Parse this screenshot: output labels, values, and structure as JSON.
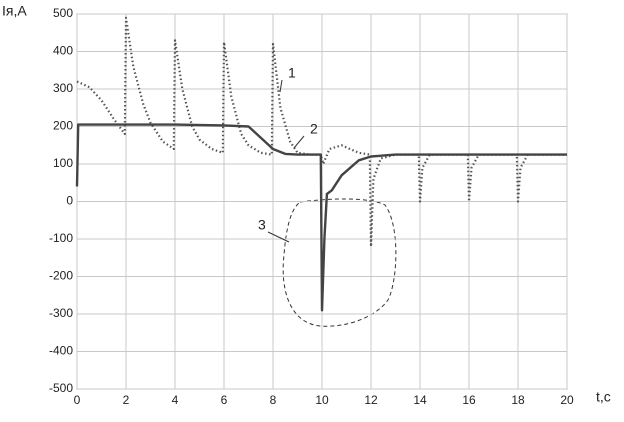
{
  "chart_data": {
    "type": "line",
    "ylabel": "Iя,A",
    "xlabel": "t,c",
    "xlim": [
      0,
      20
    ],
    "xticks": [
      0,
      2,
      4,
      6,
      8,
      10,
      12,
      14,
      16,
      18,
      20
    ],
    "ylim": [
      -500,
      500
    ],
    "yticks": [
      -500,
      -400,
      -300,
      -200,
      -100,
      0,
      100,
      200,
      300,
      400,
      500
    ],
    "grid": true,
    "series": [
      {
        "name": "1",
        "color": "#555555",
        "style": "dotted",
        "x": [
          0,
          0.5,
          1,
          1.5,
          1.95,
          2,
          2.3,
          2.7,
          3,
          3.5,
          3.95,
          4,
          4.3,
          4.7,
          5,
          5.5,
          5.95,
          6,
          6.3,
          6.7,
          7,
          7.5,
          7.95,
          8,
          8.3,
          8.7,
          9,
          9.5,
          9.95,
          10.05,
          10.3,
          10.8,
          11.5,
          11.95,
          12,
          12.1,
          12.4,
          13,
          13.95,
          14,
          14.1,
          14.4,
          15.95,
          16,
          16.1,
          16.4,
          17.95,
          18,
          18.1,
          18.4,
          20
        ],
        "values": [
          320,
          305,
          270,
          220,
          180,
          490,
          360,
          260,
          210,
          160,
          140,
          430,
          300,
          200,
          165,
          140,
          130,
          425,
          280,
          180,
          150,
          130,
          125,
          420,
          250,
          160,
          130,
          125,
          125,
          100,
          140,
          150,
          130,
          125,
          -120,
          60,
          115,
          125,
          125,
          0,
          90,
          125,
          125,
          0,
          90,
          125,
          125,
          0,
          90,
          125,
          125
        ]
      },
      {
        "name": "2",
        "color": "#444444",
        "style": "solid",
        "x": [
          0,
          0.05,
          2,
          4,
          6,
          7,
          7.5,
          8,
          8.5,
          9,
          9.95,
          10,
          10.1,
          10.2,
          10.4,
          10.8,
          11.5,
          12,
          13,
          20
        ],
        "values": [
          40,
          205,
          205,
          205,
          203,
          200,
          170,
          140,
          127,
          125,
          125,
          -290,
          -100,
          20,
          30,
          70,
          110,
          120,
          125,
          125
        ]
      }
    ],
    "annotations": [
      {
        "text": "3"
      }
    ]
  }
}
